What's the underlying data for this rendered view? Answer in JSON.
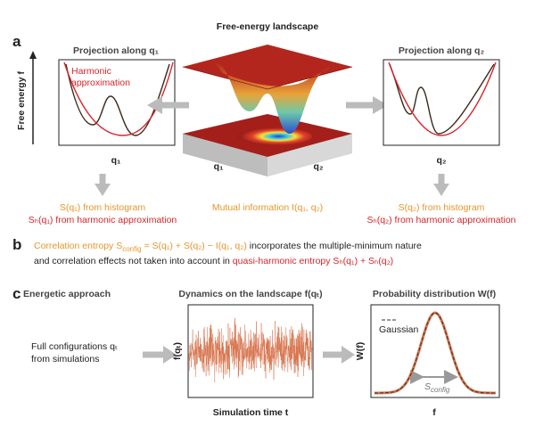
{
  "title": "Free-energy landscape",
  "panel_a": {
    "label": "a",
    "y_axis": "Free energy f",
    "left": {
      "title": "Projection along q₁",
      "legend": [
        "Harmonic",
        "approximation"
      ],
      "x_label": "q₁",
      "caption": [
        "S(q₁) from histogram",
        "Sₕ(q₁) from harmonic approximation"
      ]
    },
    "center": {
      "axes": [
        "q₁",
        "q₂"
      ],
      "caption": "Mutual information I(q₁, q₂)"
    },
    "right": {
      "title": "Projection along q₂",
      "x_label": "q₂",
      "caption": [
        "S(q₂) from histogram",
        "Sₕ(q₂) from harmonic approximation"
      ]
    }
  },
  "panel_b": {
    "label": "b",
    "line1": {
      "orange": "Correlation entropy S",
      "sub": "config",
      "orange2": " = S(q₁) + S(q₂) − I(q₁, q₂)",
      "rest": " incorporates the multiple-minimum nature"
    },
    "line2": {
      "black": "and correlation effects not taken into account in ",
      "red": "quasi-harmonic entropy Sₕ(q₁) + Sₕ(q₂)"
    }
  },
  "panel_c": {
    "label": "c",
    "left_title": "Energetic approach",
    "left_text": [
      "Full configurations qₜ",
      "from simulations"
    ],
    "mid_title": "Dynamics on the landscape f(qₜ)",
    "mid_y": "f(qₜ)",
    "mid_x": "Simulation time t",
    "right_title": "Probability distribution W(f)",
    "right_y": "W(f)",
    "right_x": "f",
    "legend": "Gaussian",
    "annotation": {
      "main": "S",
      "sub": "config"
    }
  }
}
